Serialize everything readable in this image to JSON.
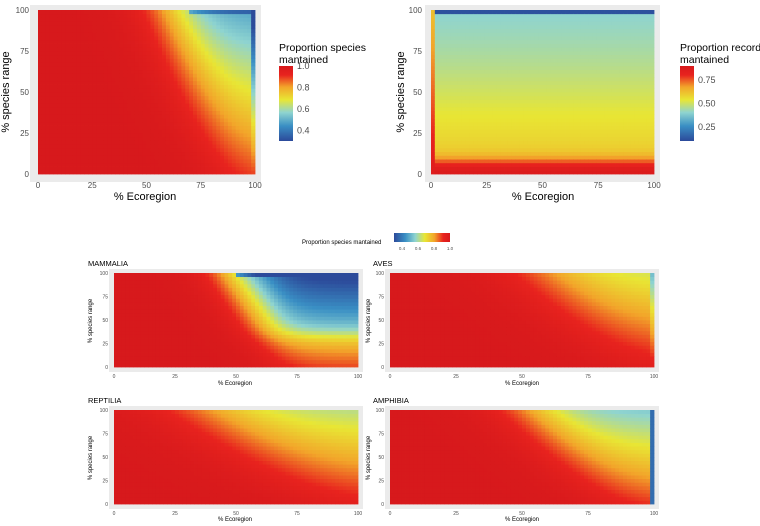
{
  "colors": {
    "scale": [
      "#2c4a9a",
      "#3a8fc4",
      "#8fd4d0",
      "#e8e634",
      "#f2a52a",
      "#e8231e",
      "#d7191c"
    ],
    "panel_bg": "#ebebeb",
    "grid": "#ffffff",
    "tick_text": "#4d4d4d"
  },
  "chart_data": [
    {
      "id": "species_all",
      "type": "heatmap",
      "title": "",
      "xlabel": "% Ecoregion",
      "ylabel": "% species range",
      "xlim": [
        0,
        100
      ],
      "ylim": [
        0,
        100
      ],
      "xticks": [
        "0",
        "25",
        "50",
        "75",
        "100"
      ],
      "yticks": [
        "0",
        "25",
        "50",
        "75",
        "100"
      ],
      "surface": "species",
      "legend": {
        "title": "Proportion species mantained",
        "range": [
          0.3,
          1.0
        ],
        "ticks": [
          "1.0",
          "0.8",
          "0.6",
          "0.4"
        ],
        "tick_values": [
          1.0,
          0.8,
          0.6,
          0.4
        ]
      }
    },
    {
      "id": "records_all",
      "type": "heatmap",
      "title": "",
      "xlabel": "% Ecoregion",
      "ylabel": "% species range",
      "xlim": [
        0,
        100
      ],
      "ylim": [
        0,
        100
      ],
      "xticks": [
        "0",
        "25",
        "50",
        "75",
        "100"
      ],
      "yticks": [
        "0",
        "25",
        "50",
        "75",
        "100"
      ],
      "surface": "records",
      "legend": {
        "title": "Proportion records mantained",
        "range": [
          0.1,
          0.9
        ],
        "ticks": [
          "0.75",
          "0.50",
          "0.25"
        ],
        "tick_values": [
          0.75,
          0.5,
          0.25
        ]
      }
    },
    {
      "id": "mammalia",
      "type": "heatmap",
      "title": "MAMMALIA",
      "xlabel": "% Ecoregion",
      "ylabel": "% species range",
      "xticks": [
        "0",
        "25",
        "50",
        "75",
        "100"
      ],
      "yticks": [
        "0",
        "25",
        "50",
        "75",
        "100"
      ],
      "surface": "mammalia"
    },
    {
      "id": "aves",
      "type": "heatmap",
      "title": "AVES",
      "xlabel": "% Ecoregion",
      "ylabel": "% species range",
      "xticks": [
        "0",
        "25",
        "50",
        "75",
        "100"
      ],
      "yticks": [
        "0",
        "25",
        "50",
        "75",
        "100"
      ],
      "surface": "aves"
    },
    {
      "id": "reptilia",
      "type": "heatmap",
      "title": "REPTILIA",
      "xlabel": "% Ecoregion",
      "ylabel": "% species range",
      "xticks": [
        "0",
        "25",
        "50",
        "75",
        "100"
      ],
      "yticks": [
        "0",
        "25",
        "50",
        "75",
        "100"
      ],
      "surface": "reptilia"
    },
    {
      "id": "amphibia",
      "type": "heatmap",
      "title": "AMPHIBIA",
      "xlabel": "% Ecoregion",
      "ylabel": "% species range",
      "xticks": [
        "0",
        "25",
        "50",
        "75",
        "100"
      ],
      "yticks": [
        "0",
        "25",
        "50",
        "75",
        "100"
      ],
      "surface": "amphibia"
    }
  ],
  "shared_legend": {
    "title": "Proportion species mantained",
    "ticks": [
      "0.4",
      "0.6",
      "0.8",
      "1.0"
    ],
    "tick_values": [
      0.4,
      0.6,
      0.8,
      1.0
    ],
    "range": [
      0.3,
      1.0
    ]
  }
}
